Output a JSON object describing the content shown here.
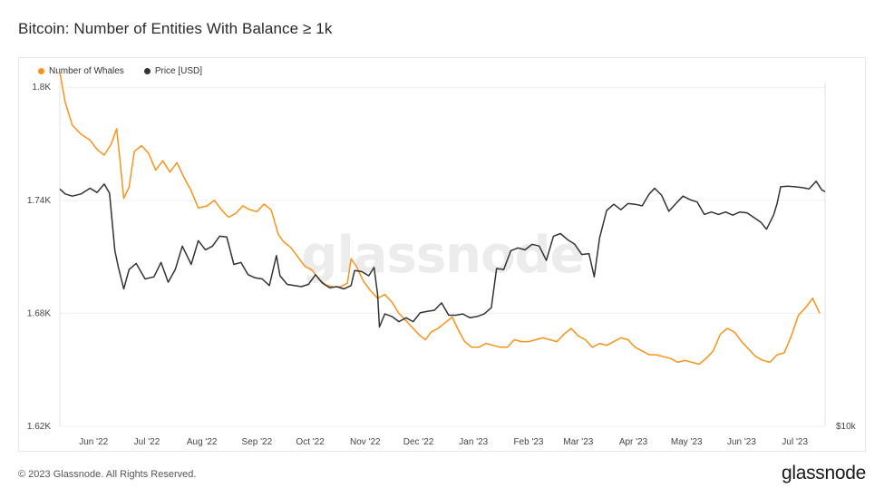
{
  "title": "Bitcoin: Number of Entities With Balance ≥ 1k",
  "legend": {
    "whales_label": "Number of Whales",
    "price_label": "Price [USD]"
  },
  "watermark": "glassnode",
  "footer": {
    "copyright": "© 2023 Glassnode. All Rights Reserved.",
    "logo": "glassnode"
  },
  "colors": {
    "whales": "#F7931A",
    "price": "#333333",
    "grid": "#efefef"
  },
  "chart_data": {
    "type": "line",
    "title": "Bitcoin: Number of Entities With Balance ≥ 1k",
    "x_range": [
      "2022-05-13",
      "2023-07-18"
    ],
    "x_ticks": [
      {
        "label": "Jun '22",
        "date": "2022-06-01"
      },
      {
        "label": "Jul '22",
        "date": "2022-07-01"
      },
      {
        "label": "Aug '22",
        "date": "2022-08-01"
      },
      {
        "label": "Sep '22",
        "date": "2022-09-01"
      },
      {
        "label": "Oct '22",
        "date": "2022-10-01"
      },
      {
        "label": "Nov '22",
        "date": "2022-11-01"
      },
      {
        "label": "Dec '22",
        "date": "2022-12-01"
      },
      {
        "label": "Jan '23",
        "date": "2023-01-01"
      },
      {
        "label": "Feb '23",
        "date": "2023-02-01"
      },
      {
        "label": "Mar '23",
        "date": "2023-03-01"
      },
      {
        "label": "Apr '23",
        "date": "2023-04-01"
      },
      {
        "label": "May '23",
        "date": "2023-05-01"
      },
      {
        "label": "Jun '23",
        "date": "2023-06-01"
      },
      {
        "label": "Jul '23",
        "date": "2023-07-01"
      }
    ],
    "y_left": {
      "ticks": [
        {
          "label": "1.62K",
          "value": 1620
        },
        {
          "label": "1.68K",
          "value": 1680
        },
        {
          "label": "1.74K",
          "value": 1740
        },
        {
          "label": "1.8K",
          "value": 1800
        }
      ],
      "range": [
        1620,
        1803
      ]
    },
    "y_right": {
      "ticks": [
        {
          "label": "$10k",
          "value": 10000
        }
      ],
      "scale": "log",
      "range": [
        10000,
        50000
      ]
    },
    "grid": true,
    "legend_position": "top-left",
    "series": [
      {
        "name": "Number of Whales",
        "axis": "left",
        "points": [
          [
            "2022-05-13",
            1808
          ],
          [
            "2022-05-16",
            1792
          ],
          [
            "2022-05-20",
            1780
          ],
          [
            "2022-05-25",
            1775
          ],
          [
            "2022-05-30",
            1772
          ],
          [
            "2022-06-03",
            1767
          ],
          [
            "2022-06-07",
            1764
          ],
          [
            "2022-06-11",
            1770
          ],
          [
            "2022-06-14",
            1778
          ],
          [
            "2022-06-16",
            1760
          ],
          [
            "2022-06-18",
            1741
          ],
          [
            "2022-06-21",
            1747
          ],
          [
            "2022-06-24",
            1766
          ],
          [
            "2022-06-28",
            1769
          ],
          [
            "2022-07-02",
            1765
          ],
          [
            "2022-07-06",
            1756
          ],
          [
            "2022-07-10",
            1761
          ],
          [
            "2022-07-14",
            1755
          ],
          [
            "2022-07-18",
            1760
          ],
          [
            "2022-07-22",
            1752
          ],
          [
            "2022-07-26",
            1745
          ],
          [
            "2022-07-30",
            1736
          ],
          [
            "2022-08-04",
            1737
          ],
          [
            "2022-08-08",
            1740
          ],
          [
            "2022-08-12",
            1735
          ],
          [
            "2022-08-16",
            1731
          ],
          [
            "2022-08-20",
            1733
          ],
          [
            "2022-08-24",
            1737
          ],
          [
            "2022-08-28",
            1735
          ],
          [
            "2022-09-01",
            1734
          ],
          [
            "2022-09-05",
            1738
          ],
          [
            "2022-09-09",
            1735
          ],
          [
            "2022-09-13",
            1722
          ],
          [
            "2022-09-16",
            1718
          ],
          [
            "2022-09-20",
            1715
          ],
          [
            "2022-09-24",
            1710
          ],
          [
            "2022-09-28",
            1705
          ],
          [
            "2022-10-02",
            1703
          ],
          [
            "2022-10-06",
            1698
          ],
          [
            "2022-10-10",
            1695
          ],
          [
            "2022-10-14",
            1694
          ],
          [
            "2022-10-18",
            1694
          ],
          [
            "2022-10-22",
            1696
          ],
          [
            "2022-10-24",
            1709
          ],
          [
            "2022-10-27",
            1705
          ],
          [
            "2022-10-31",
            1697
          ],
          [
            "2022-11-04",
            1692
          ],
          [
            "2022-11-08",
            1688
          ],
          [
            "2022-11-12",
            1690
          ],
          [
            "2022-11-16",
            1686
          ],
          [
            "2022-11-20",
            1680
          ],
          [
            "2022-11-24",
            1676
          ],
          [
            "2022-11-28",
            1672
          ],
          [
            "2022-12-02",
            1668
          ],
          [
            "2022-12-05",
            1666
          ],
          [
            "2022-12-08",
            1670
          ],
          [
            "2022-12-12",
            1672
          ],
          [
            "2022-12-16",
            1675
          ],
          [
            "2022-12-20",
            1678
          ],
          [
            "2022-12-23",
            1672
          ],
          [
            "2022-12-27",
            1665
          ],
          [
            "2022-12-31",
            1662
          ],
          [
            "2023-01-04",
            1662
          ],
          [
            "2023-01-08",
            1664
          ],
          [
            "2023-01-12",
            1663
          ],
          [
            "2023-01-16",
            1662
          ],
          [
            "2023-01-20",
            1662
          ],
          [
            "2023-01-24",
            1666
          ],
          [
            "2023-01-28",
            1665
          ],
          [
            "2023-02-01",
            1665
          ],
          [
            "2023-02-05",
            1666
          ],
          [
            "2023-02-09",
            1667
          ],
          [
            "2023-02-13",
            1666
          ],
          [
            "2023-02-17",
            1665
          ],
          [
            "2023-02-21",
            1669
          ],
          [
            "2023-02-25",
            1672
          ],
          [
            "2023-03-01",
            1668
          ],
          [
            "2023-03-05",
            1666
          ],
          [
            "2023-03-09",
            1662
          ],
          [
            "2023-03-13",
            1664
          ],
          [
            "2023-03-17",
            1663
          ],
          [
            "2023-03-21",
            1665
          ],
          [
            "2023-03-25",
            1667
          ],
          [
            "2023-03-29",
            1666
          ],
          [
            "2023-04-02",
            1662
          ],
          [
            "2023-04-06",
            1660
          ],
          [
            "2023-04-10",
            1658
          ],
          [
            "2023-04-14",
            1658
          ],
          [
            "2023-04-18",
            1657
          ],
          [
            "2023-04-22",
            1656
          ],
          [
            "2023-04-26",
            1654
          ],
          [
            "2023-04-30",
            1655
          ],
          [
            "2023-05-04",
            1654
          ],
          [
            "2023-05-08",
            1653
          ],
          [
            "2023-05-12",
            1656
          ],
          [
            "2023-05-16",
            1660
          ],
          [
            "2023-05-20",
            1669
          ],
          [
            "2023-05-24",
            1672
          ],
          [
            "2023-05-28",
            1670
          ],
          [
            "2023-06-01",
            1665
          ],
          [
            "2023-06-05",
            1661
          ],
          [
            "2023-06-09",
            1657
          ],
          [
            "2023-06-13",
            1655
          ],
          [
            "2023-06-17",
            1654
          ],
          [
            "2023-06-21",
            1658
          ],
          [
            "2023-06-25",
            1659
          ],
          [
            "2023-06-29",
            1668
          ],
          [
            "2023-07-03",
            1679
          ],
          [
            "2023-07-07",
            1683
          ],
          [
            "2023-07-11",
            1688
          ],
          [
            "2023-07-15",
            1680
          ]
        ]
      },
      {
        "name": "Price [USD]",
        "axis": "right",
        "points": [
          [
            "2022-05-13",
            30300
          ],
          [
            "2022-05-16",
            29600
          ],
          [
            "2022-05-20",
            29300
          ],
          [
            "2022-05-25",
            29600
          ],
          [
            "2022-05-30",
            30400
          ],
          [
            "2022-06-03",
            29800
          ],
          [
            "2022-06-07",
            31000
          ],
          [
            "2022-06-10",
            29700
          ],
          [
            "2022-06-13",
            22700
          ],
          [
            "2022-06-15",
            21000
          ],
          [
            "2022-06-18",
            19000
          ],
          [
            "2022-06-21",
            20800
          ],
          [
            "2022-06-25",
            21400
          ],
          [
            "2022-06-30",
            19900
          ],
          [
            "2022-07-05",
            20100
          ],
          [
            "2022-07-09",
            21500
          ],
          [
            "2022-07-13",
            19600
          ],
          [
            "2022-07-17",
            20800
          ],
          [
            "2022-07-21",
            23200
          ],
          [
            "2022-07-26",
            21300
          ],
          [
            "2022-07-30",
            23800
          ],
          [
            "2022-08-03",
            22800
          ],
          [
            "2022-08-07",
            23200
          ],
          [
            "2022-08-11",
            24300
          ],
          [
            "2022-08-15",
            24200
          ],
          [
            "2022-08-19",
            21300
          ],
          [
            "2022-08-23",
            21500
          ],
          [
            "2022-08-27",
            20300
          ],
          [
            "2022-08-31",
            20000
          ],
          [
            "2022-09-04",
            19900
          ],
          [
            "2022-09-08",
            19300
          ],
          [
            "2022-09-12",
            22200
          ],
          [
            "2022-09-14",
            20200
          ],
          [
            "2022-09-18",
            19400
          ],
          [
            "2022-09-22",
            19300
          ],
          [
            "2022-09-26",
            19200
          ],
          [
            "2022-09-30",
            19400
          ],
          [
            "2022-10-04",
            20300
          ],
          [
            "2022-10-08",
            19500
          ],
          [
            "2022-10-12",
            19100
          ],
          [
            "2022-10-16",
            19200
          ],
          [
            "2022-10-20",
            19000
          ],
          [
            "2022-10-24",
            19300
          ],
          [
            "2022-10-26",
            20700
          ],
          [
            "2022-10-30",
            20600
          ],
          [
            "2022-11-03",
            20200
          ],
          [
            "2022-11-06",
            21000
          ],
          [
            "2022-11-08",
            18500
          ],
          [
            "2022-11-09",
            15900
          ],
          [
            "2022-11-12",
            16900
          ],
          [
            "2022-11-16",
            16700
          ],
          [
            "2022-11-20",
            16300
          ],
          [
            "2022-11-24",
            16600
          ],
          [
            "2022-11-28",
            16300
          ],
          [
            "2022-12-02",
            17000
          ],
          [
            "2022-12-06",
            17100
          ],
          [
            "2022-12-10",
            17200
          ],
          [
            "2022-12-14",
            17800
          ],
          [
            "2022-12-18",
            16800
          ],
          [
            "2022-12-22",
            16800
          ],
          [
            "2022-12-26",
            16900
          ],
          [
            "2022-12-30",
            16600
          ],
          [
            "2023-01-03",
            16700
          ],
          [
            "2023-01-07",
            16900
          ],
          [
            "2023-01-11",
            17400
          ],
          [
            "2023-01-14",
            20900
          ],
          [
            "2023-01-18",
            20800
          ],
          [
            "2023-01-22",
            22700
          ],
          [
            "2023-01-26",
            23000
          ],
          [
            "2023-01-30",
            22800
          ],
          [
            "2023-02-03",
            23400
          ],
          [
            "2023-02-07",
            23200
          ],
          [
            "2023-02-11",
            21700
          ],
          [
            "2023-02-15",
            24300
          ],
          [
            "2023-02-19",
            24600
          ],
          [
            "2023-02-23",
            23900
          ],
          [
            "2023-02-27",
            23400
          ],
          [
            "2023-03-03",
            22300
          ],
          [
            "2023-03-07",
            22400
          ],
          [
            "2023-03-10",
            20100
          ],
          [
            "2023-03-13",
            24100
          ],
          [
            "2023-03-17",
            27400
          ],
          [
            "2023-03-21",
            28200
          ],
          [
            "2023-03-25",
            27500
          ],
          [
            "2023-03-29",
            28300
          ],
          [
            "2023-04-02",
            28200
          ],
          [
            "2023-04-06",
            28000
          ],
          [
            "2023-04-10",
            29600
          ],
          [
            "2023-04-13",
            30400
          ],
          [
            "2023-04-17",
            29400
          ],
          [
            "2023-04-21",
            27300
          ],
          [
            "2023-04-25",
            28300
          ],
          [
            "2023-04-29",
            29300
          ],
          [
            "2023-05-03",
            28800
          ],
          [
            "2023-05-07",
            28500
          ],
          [
            "2023-05-11",
            26900
          ],
          [
            "2023-05-15",
            27200
          ],
          [
            "2023-05-19",
            26900
          ],
          [
            "2023-05-23",
            27200
          ],
          [
            "2023-05-27",
            26800
          ],
          [
            "2023-05-31",
            27200
          ],
          [
            "2023-06-04",
            27100
          ],
          [
            "2023-06-08",
            26500
          ],
          [
            "2023-06-12",
            25900
          ],
          [
            "2023-06-15",
            25100
          ],
          [
            "2023-06-19",
            26800
          ],
          [
            "2023-06-21",
            28300
          ],
          [
            "2023-06-23",
            30600
          ],
          [
            "2023-06-27",
            30700
          ],
          [
            "2023-07-01",
            30600
          ],
          [
            "2023-07-05",
            30500
          ],
          [
            "2023-07-09",
            30300
          ],
          [
            "2023-07-13",
            31400
          ],
          [
            "2023-07-16",
            30200
          ],
          [
            "2023-07-18",
            29900
          ]
        ]
      }
    ]
  }
}
